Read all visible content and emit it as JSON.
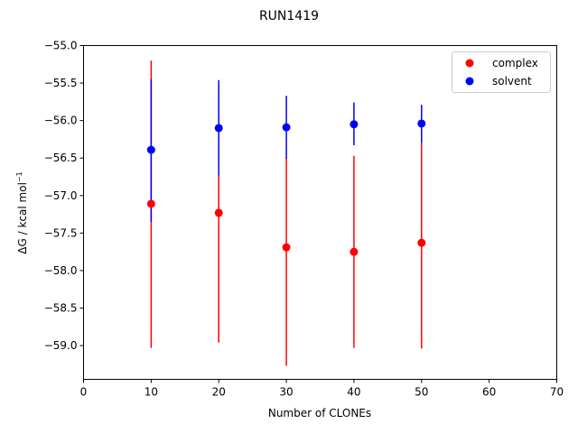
{
  "chart_data": {
    "type": "scatter",
    "title": "RUN1419",
    "xlabel": "Number of CLONEs",
    "ylabel_main": "ΔG / kcal mol",
    "ylabel_sup": "−1",
    "xlim": [
      0,
      70
    ],
    "ylim": [
      -59.45,
      -55.0
    ],
    "xticks": [
      0,
      10,
      20,
      30,
      40,
      50,
      60,
      70
    ],
    "xtick_labels": [
      "0",
      "10",
      "20",
      "30",
      "40",
      "50",
      "60",
      "70"
    ],
    "yticks": [
      -55.0,
      -55.5,
      -56.0,
      -56.5,
      -57.0,
      -57.5,
      -58.0,
      -58.5,
      -59.0
    ],
    "ytick_labels": [
      "−55.0",
      "−55.5",
      "−56.0",
      "−56.5",
      "−57.0",
      "−57.5",
      "−58.0",
      "−58.5",
      "−59.0"
    ],
    "grid": false,
    "legend_position": "top-right",
    "series": [
      {
        "name": "complex",
        "color": "#ff0000",
        "x": [
          10,
          20,
          30,
          40,
          50
        ],
        "y": [
          -57.11,
          -57.23,
          -57.69,
          -57.75,
          -57.63
        ],
        "err_low": [
          -59.03,
          -58.96,
          -59.27,
          -59.03,
          -59.04
        ],
        "err_high": [
          -55.2,
          -56.72,
          -56.5,
          -56.47,
          -56.3
        ]
      },
      {
        "name": "solvent",
        "color": "#0000ff",
        "x": [
          10,
          20,
          30,
          40,
          50
        ],
        "y": [
          -56.39,
          -56.1,
          -56.09,
          -56.05,
          -56.04
        ],
        "err_low": [
          -57.35,
          -56.73,
          -56.51,
          -56.33,
          -56.3
        ],
        "err_high": [
          -55.45,
          -55.46,
          -55.67,
          -55.76,
          -55.79
        ]
      }
    ]
  }
}
